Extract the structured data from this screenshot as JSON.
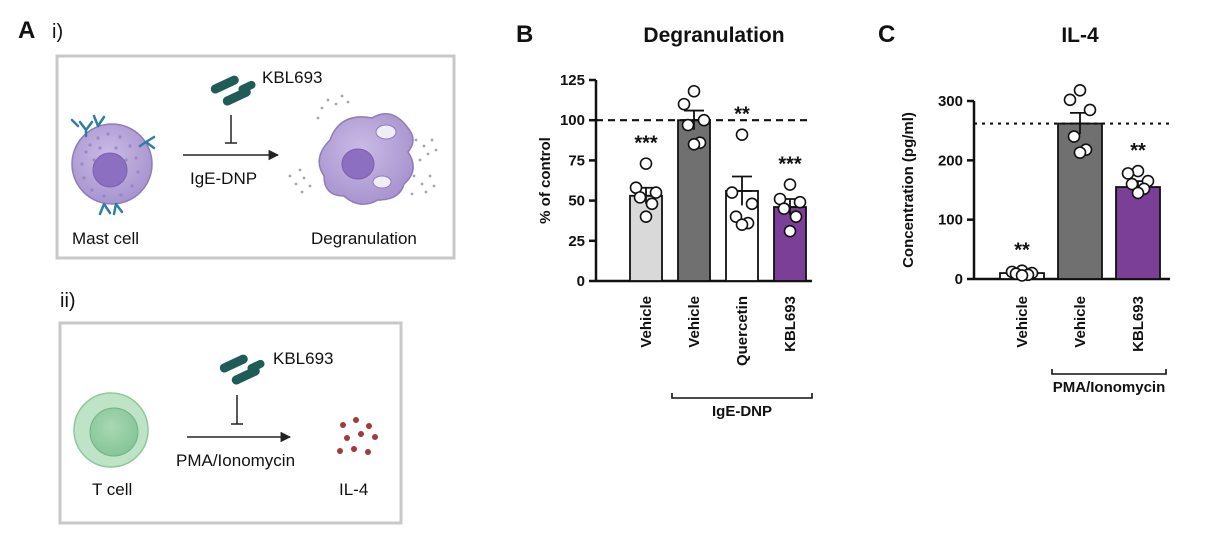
{
  "panel_a": {
    "letter": "A",
    "sub_i": "i)",
    "sub_ii": "ii)",
    "box_i": {
      "drug": "KBL693",
      "stimulus": "IgE-DNP",
      "left_label": "Mast cell",
      "right_label": "Degranulation"
    },
    "box_ii": {
      "drug": "KBL693",
      "stimulus": "PMA/Ionomycin",
      "left_label": "T cell",
      "right_label": "IL-4"
    }
  },
  "colors": {
    "grey_light": "#d9d9d9",
    "grey_dark": "#707070",
    "white": "#ffffff",
    "purple": "#7b3f98",
    "drug_teal": "#1f5c57",
    "mast_purple": "#b9a6d8",
    "tcell_green": "#7cc08f",
    "il4_red": "#a33a3a"
  },
  "chart_data": [
    {
      "panel_letter": "B",
      "type": "bar",
      "title": "Degranulation",
      "ylabel": "% of control",
      "xlabel": "",
      "ylim": [
        0,
        125
      ],
      "yticks": [
        0,
        25,
        50,
        75,
        100,
        125
      ],
      "reference_line": {
        "value": 100,
        "style": "dashed"
      },
      "categories": [
        "Vehicle",
        "Vehicle",
        "Quercetin",
        "KBL693"
      ],
      "values": [
        53,
        100,
        56,
        46
      ],
      "sem": [
        5,
        6,
        9,
        5
      ],
      "bar_colors": [
        "#d9d9d9",
        "#707070",
        "#ffffff",
        "#7b3f98"
      ],
      "points": [
        [
          73,
          58,
          55,
          52,
          48,
          40
        ],
        [
          118,
          110,
          100,
          97,
          86,
          85
        ],
        [
          91,
          55,
          48,
          40,
          36,
          35
        ],
        [
          60,
          51,
          49,
          45,
          40,
          31
        ]
      ],
      "significance": [
        "***",
        "",
        "**",
        "***"
      ],
      "group_bracket": {
        "label": "IgE-DNP",
        "from_category": 1,
        "to_category": 3
      }
    },
    {
      "panel_letter": "C",
      "type": "bar",
      "title": "IL-4",
      "ylabel": "Concentration (pg/ml)",
      "xlabel": "",
      "ylim": [
        0,
        300
      ],
      "yticks": [
        0,
        100,
        200,
        300
      ],
      "reference_line": {
        "value": 262,
        "style": "dotted"
      },
      "categories": [
        "Vehicle",
        "Vehicle",
        "KBL693"
      ],
      "values": [
        10,
        262,
        155
      ],
      "sem": [
        2,
        18,
        10
      ],
      "bar_colors": [
        "#ffffff",
        "#707070",
        "#7b3f98"
      ],
      "points": [
        [
          14,
          12,
          10,
          9,
          7,
          6
        ],
        [
          318,
          302,
          285,
          240,
          218,
          213
        ],
        [
          182,
          178,
          165,
          160,
          152,
          145
        ]
      ],
      "significance": [
        "**",
        "",
        "**"
      ],
      "group_bracket": {
        "label": "PMA/Ionomycin",
        "from_category": 1,
        "to_category": 2
      }
    }
  ]
}
